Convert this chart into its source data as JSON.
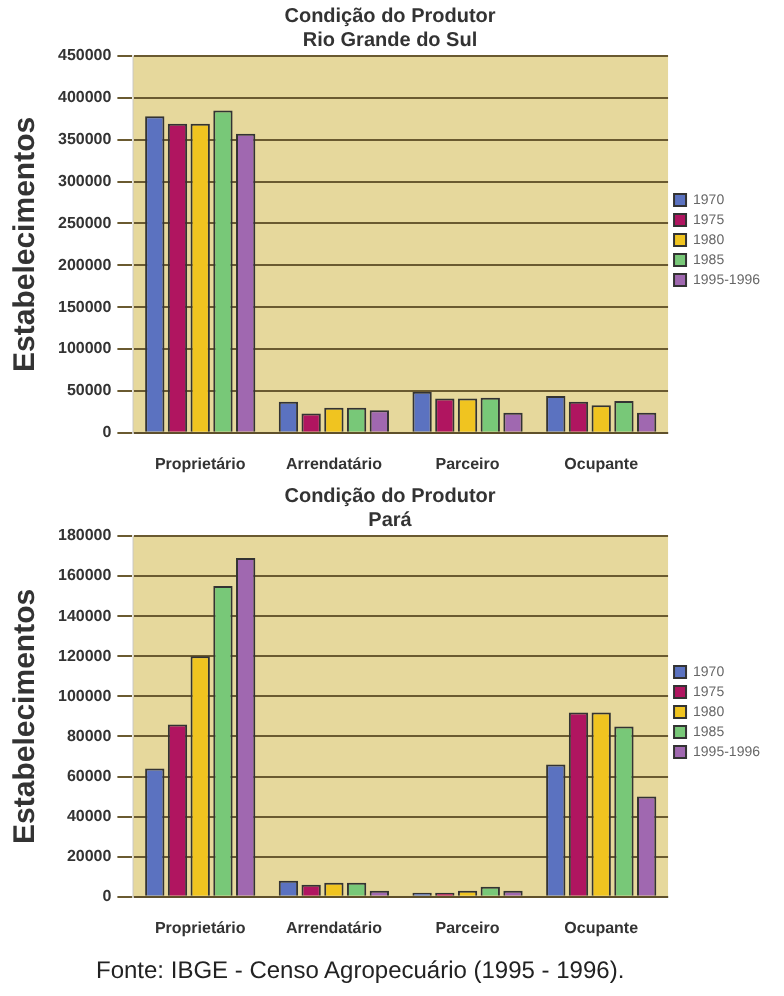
{
  "chart_data": [
    {
      "type": "bar",
      "title": "Condição do Produtor",
      "subtitle": "Rio Grande do Sul",
      "ylabel": "Estabelecimentos",
      "categories": [
        "Proprietário",
        "Arrendatário",
        "Parceiro",
        "Ocupante"
      ],
      "series": [
        {
          "name": "1970",
          "color": "#5b72c0",
          "values": [
            378000,
            37000,
            49000,
            44000
          ]
        },
        {
          "name": "1975",
          "color": "#b01560",
          "values": [
            369000,
            23000,
            41000,
            37000
          ]
        },
        {
          "name": "1980",
          "color": "#f0c420",
          "values": [
            369000,
            30000,
            41000,
            33000
          ]
        },
        {
          "name": "1985",
          "color": "#78c878",
          "values": [
            385000,
            30000,
            42000,
            38000
          ]
        },
        {
          "name": "1995-1996",
          "color": "#a068b0",
          "values": [
            357000,
            27000,
            24000,
            24000
          ]
        }
      ],
      "ylim": [
        0,
        450000
      ],
      "yticks": [
        0,
        50000,
        100000,
        150000,
        200000,
        250000,
        300000,
        350000,
        400000,
        450000
      ],
      "grid": "y",
      "legend": "right"
    },
    {
      "type": "bar",
      "title": "Condição do Produtor",
      "subtitle": "Pará",
      "ylabel": "Estabelecimentos",
      "categories": [
        "Proprietário",
        "Arrendatário",
        "Parceiro",
        "Ocupante"
      ],
      "series": [
        {
          "name": "1970",
          "color": "#5b72c0",
          "values": [
            64000,
            8000,
            2000,
            66000
          ]
        },
        {
          "name": "1975",
          "color": "#b01560",
          "values": [
            86000,
            6000,
            2000,
            92000
          ]
        },
        {
          "name": "1980",
          "color": "#f0c420",
          "values": [
            120000,
            7000,
            3000,
            92000
          ]
        },
        {
          "name": "1985",
          "color": "#78c878",
          "values": [
            155000,
            7000,
            5000,
            85000
          ]
        },
        {
          "name": "1995-1996",
          "color": "#a068b0",
          "values": [
            169000,
            3000,
            3000,
            50000
          ]
        }
      ],
      "ylim": [
        0,
        180000
      ],
      "yticks": [
        0,
        20000,
        40000,
        60000,
        80000,
        100000,
        120000,
        140000,
        160000,
        180000
      ],
      "grid": "y",
      "legend": "right",
      "annotations": [
        "Fonte: IBGE - Censo Agropecuário (1995 - 1996)."
      ]
    }
  ]
}
